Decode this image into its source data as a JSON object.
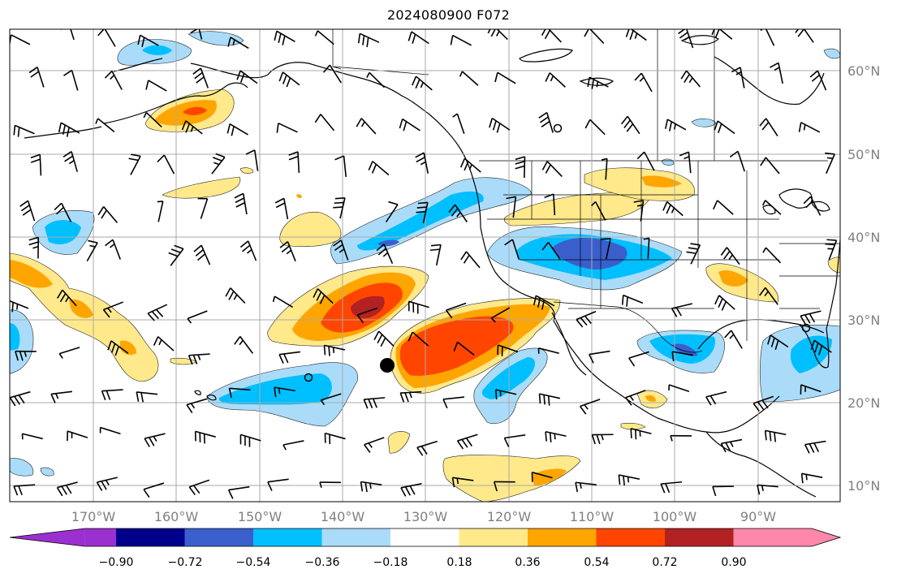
{
  "title": "2024080900 F072",
  "map": {
    "lat_labels": [
      {
        "value": 60,
        "text": "60°N"
      },
      {
        "value": 50,
        "text": "50°N"
      },
      {
        "value": 40,
        "text": "40°N"
      },
      {
        "value": 30,
        "text": "30°N"
      },
      {
        "value": 20,
        "text": "20°N"
      },
      {
        "value": 10,
        "text": "10°N"
      }
    ],
    "lon_labels": [
      {
        "value": -170,
        "text": "170°W"
      },
      {
        "value": -160,
        "text": "160°W"
      },
      {
        "value": -150,
        "text": "150°W"
      },
      {
        "value": -140,
        "text": "140°W"
      },
      {
        "value": -130,
        "text": "130°W"
      },
      {
        "value": -120,
        "text": "120°W"
      },
      {
        "value": -110,
        "text": "110°W"
      },
      {
        "value": -100,
        "text": "100°W"
      },
      {
        "value": -90,
        "text": "90°W"
      }
    ],
    "lon_range": [
      -180,
      -80
    ],
    "lat_range": [
      7,
      65
    ],
    "grid": true,
    "fill_colors": {
      "neg_090": "#9b30d0",
      "neg_072": "#00008b",
      "neg_054": "#3a5fcd",
      "neg_036": "#00bfff",
      "neg_018": "#aadcfa",
      "pos_018": "#ffe98a",
      "pos_036": "#ffa500",
      "pos_054": "#ff4500",
      "pos_072": "#b22222",
      "pos_090": "#ff88aa"
    }
  },
  "colorbar": {
    "ticks": [
      "−0.90",
      "−0.72",
      "−0.54",
      "−0.36",
      "−0.18",
      "0.18",
      "0.36",
      "0.54",
      "0.72",
      "0.90"
    ],
    "colors": [
      "#9b30d0",
      "#00008b",
      "#3a5fcd",
      "#00bfff",
      "#aadcfa",
      "#ffffff",
      "#ffe98a",
      "#ffa500",
      "#ff4500",
      "#b22222",
      "#ff88aa"
    ]
  }
}
